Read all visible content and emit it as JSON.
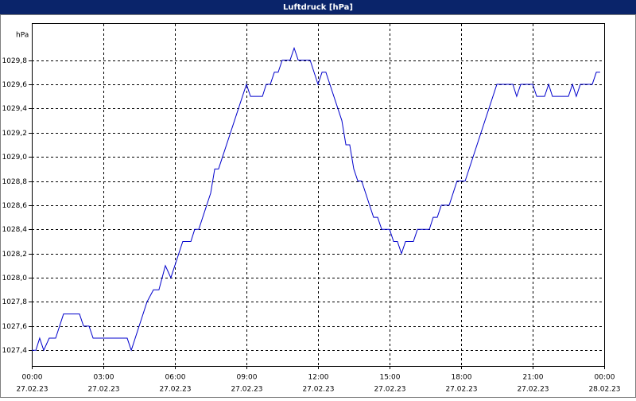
{
  "chart_data": {
    "type": "line",
    "title": "Luftdruck [hPa]",
    "y_unit": "hPa",
    "xlim": [
      0,
      24
    ],
    "ylim": [
      1027.27,
      1030.1
    ],
    "xticks": [
      {
        "value": 0,
        "label": "00:00",
        "date": "27.02.23"
      },
      {
        "value": 3,
        "label": "03:00",
        "date": "27.02.23"
      },
      {
        "value": 6,
        "label": "06:00",
        "date": "27.02.23"
      },
      {
        "value": 9,
        "label": "09:00",
        "date": "27.02.23"
      },
      {
        "value": 12,
        "label": "12:00",
        "date": "27.02.23"
      },
      {
        "value": 15,
        "label": "15:00",
        "date": "27.02.23"
      },
      {
        "value": 18,
        "label": "18:00",
        "date": "27.02.23"
      },
      {
        "value": 21,
        "label": "21:00",
        "date": "27.02.23"
      },
      {
        "value": 24,
        "label": "00:00",
        "date": "28.02.23"
      }
    ],
    "yticks": [
      {
        "value": 1027.4,
        "label": "1027,4"
      },
      {
        "value": 1027.6,
        "label": "1027,6"
      },
      {
        "value": 1027.8,
        "label": "1027,8"
      },
      {
        "value": 1028.0,
        "label": "1028,0"
      },
      {
        "value": 1028.2,
        "label": "1028,2"
      },
      {
        "value": 1028.4,
        "label": "1028,4"
      },
      {
        "value": 1028.6,
        "label": "1028,6"
      },
      {
        "value": 1028.8,
        "label": "1028,8"
      },
      {
        "value": 1029.0,
        "label": "1029,0"
      },
      {
        "value": 1029.2,
        "label": "1029,2"
      },
      {
        "value": 1029.4,
        "label": "1029,4"
      },
      {
        "value": 1029.6,
        "label": "1029,6"
      },
      {
        "value": 1029.8,
        "label": "1029,8"
      }
    ],
    "grid": true,
    "series": [
      {
        "color": "#0000cc",
        "x": [
          0,
          0.17,
          0.33,
          0.5,
          0.73,
          1,
          1.33,
          2,
          2.17,
          2.4,
          2.57,
          4,
          4.17,
          4.83,
          5.1,
          5.33,
          5.6,
          5.83,
          6.33,
          6.67,
          6.83,
          7,
          7.5,
          7.67,
          7.83,
          9,
          9.17,
          9.67,
          9.83,
          10,
          10.17,
          10.33,
          10.5,
          10.83,
          11,
          11.17,
          11.67,
          12,
          12.17,
          12.33,
          13,
          13.17,
          13.33,
          13.5,
          13.67,
          13.83,
          14.33,
          14.5,
          14.67,
          15,
          15.17,
          15.33,
          15.5,
          15.67,
          16,
          16.17,
          16.67,
          16.83,
          17,
          17.17,
          17.5,
          17.83,
          18.17,
          19.5,
          20.17,
          20.33,
          20.5,
          21,
          21.17,
          21.5,
          21.67,
          21.83,
          22.5,
          22.67,
          22.83,
          23,
          23.5,
          23.67,
          23.83
        ],
        "values": [
          1027.4,
          1027.4,
          1027.5,
          1027.4,
          1027.5,
          1027.5,
          1027.7,
          1027.7,
          1027.6,
          1027.6,
          1027.5,
          1027.5,
          1027.4,
          1027.8,
          1027.9,
          1027.9,
          1028.1,
          1028.0,
          1028.3,
          1028.3,
          1028.4,
          1028.4,
          1028.7,
          1028.9,
          1028.9,
          1029.6,
          1029.5,
          1029.5,
          1029.6,
          1029.6,
          1029.7,
          1029.7,
          1029.8,
          1029.8,
          1029.9,
          1029.8,
          1029.8,
          1029.6,
          1029.7,
          1029.7,
          1029.3,
          1029.1,
          1029.1,
          1028.9,
          1028.8,
          1028.8,
          1028.5,
          1028.5,
          1028.4,
          1028.4,
          1028.3,
          1028.3,
          1028.2,
          1028.3,
          1028.3,
          1028.4,
          1028.4,
          1028.5,
          1028.5,
          1028.6,
          1028.6,
          1028.8,
          1028.8,
          1029.6,
          1029.6,
          1029.5,
          1029.6,
          1029.6,
          1029.5,
          1029.5,
          1029.6,
          1029.5,
          1029.5,
          1029.6,
          1029.5,
          1029.6,
          1029.6,
          1029.7,
          1029.7
        ]
      }
    ]
  }
}
